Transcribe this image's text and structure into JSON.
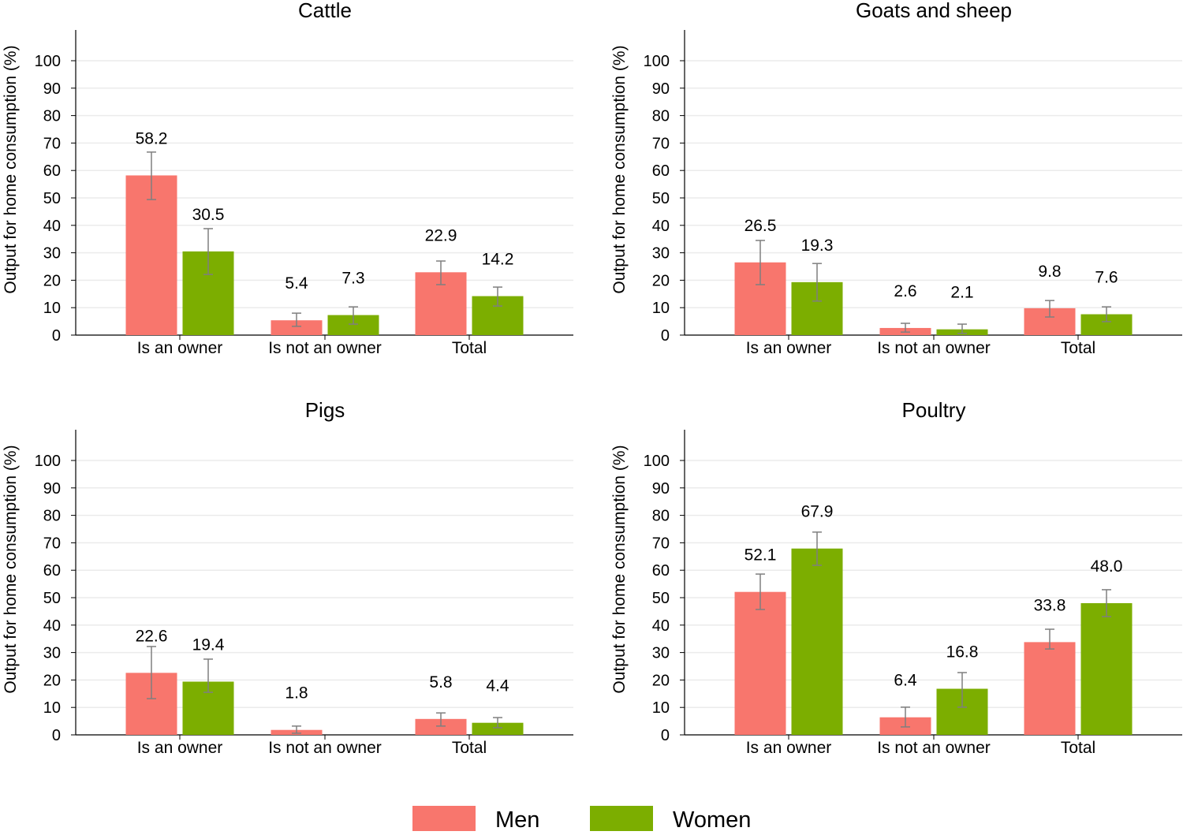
{
  "chart_data": [
    {
      "type": "bar",
      "title": "Cattle",
      "ylabel": "Output for home consumption (%)",
      "ylim": [
        0,
        110
      ],
      "yticks": [
        0,
        10,
        20,
        30,
        40,
        50,
        60,
        70,
        80,
        90,
        100
      ],
      "grid": true,
      "categories": [
        "Is an owner",
        "Is not an owner",
        "Total"
      ],
      "series": [
        {
          "name": "Men",
          "values": [
            58.2,
            5.4,
            22.9
          ],
          "ci_low": [
            49.4,
            3.2,
            18.4
          ],
          "ci_high": [
            66.7,
            8.0,
            27.0
          ]
        },
        {
          "name": "Women",
          "values": [
            30.5,
            7.3,
            14.2
          ],
          "ci_low": [
            22.1,
            4.0,
            10.6
          ],
          "ci_high": [
            38.8,
            10.3,
            17.5
          ]
        }
      ]
    },
    {
      "type": "bar",
      "title": "Goats and sheep",
      "ylabel": "Output for home consumption (%)",
      "ylim": [
        0,
        110
      ],
      "yticks": [
        0,
        10,
        20,
        30,
        40,
        50,
        60,
        70,
        80,
        90,
        100
      ],
      "grid": true,
      "categories": [
        "Is an owner",
        "Is not an owner",
        "Total"
      ],
      "series": [
        {
          "name": "Men",
          "values": [
            26.5,
            2.6,
            9.8
          ],
          "ci_low": [
            18.4,
            1.1,
            6.6
          ],
          "ci_high": [
            34.5,
            4.3,
            12.6
          ]
        },
        {
          "name": "Women",
          "values": [
            19.3,
            2.1,
            7.6
          ],
          "ci_low": [
            12.4,
            0.6,
            4.9
          ],
          "ci_high": [
            26.1,
            4.0,
            10.3
          ]
        }
      ]
    },
    {
      "type": "bar",
      "title": "Pigs",
      "ylabel": "Output for home consumption (%)",
      "ylim": [
        0,
        110
      ],
      "yticks": [
        0,
        10,
        20,
        30,
        40,
        50,
        60,
        70,
        80,
        90,
        100
      ],
      "grid": true,
      "categories": [
        "Is an owner",
        "Is not an owner",
        "Total"
      ],
      "series": [
        {
          "name": "Men",
          "values": [
            22.6,
            1.8,
            5.8
          ],
          "ci_low": [
            13.2,
            0.6,
            3.2
          ],
          "ci_high": [
            32.2,
            3.2,
            8.0
          ]
        },
        {
          "name": "Women",
          "values": [
            19.4,
            null,
            4.4
          ],
          "ci_low": [
            15.5,
            null,
            2.6
          ],
          "ci_high": [
            27.6,
            null,
            6.3
          ]
        }
      ]
    },
    {
      "type": "bar",
      "title": "Poultry",
      "ylabel": "Output for home consumption (%)",
      "ylim": [
        0,
        110
      ],
      "yticks": [
        0,
        10,
        20,
        30,
        40,
        50,
        60,
        70,
        80,
        90,
        100
      ],
      "grid": true,
      "categories": [
        "Is an owner",
        "Is not an owner",
        "Total"
      ],
      "series": [
        {
          "name": "Men",
          "values": [
            52.1,
            6.4,
            33.8
          ],
          "ci_low": [
            45.7,
            2.9,
            31.3
          ],
          "ci_high": [
            58.6,
            10.1,
            38.5
          ]
        },
        {
          "name": "Women",
          "values": [
            67.9,
            16.8,
            48.0
          ],
          "ci_low": [
            61.8,
            10.1,
            43.1
          ],
          "ci_high": [
            73.9,
            22.7,
            52.9
          ]
        }
      ]
    }
  ],
  "legend": {
    "placement": "bottom",
    "items": [
      {
        "label": "Men",
        "color": "#F8766D"
      },
      {
        "label": "Women",
        "color": "#7CAE00"
      }
    ]
  },
  "colors": {
    "men": "#F8766D",
    "women": "#7CAE00",
    "grid": "#EBEBEB",
    "errorbar": "#7F7F7F"
  }
}
